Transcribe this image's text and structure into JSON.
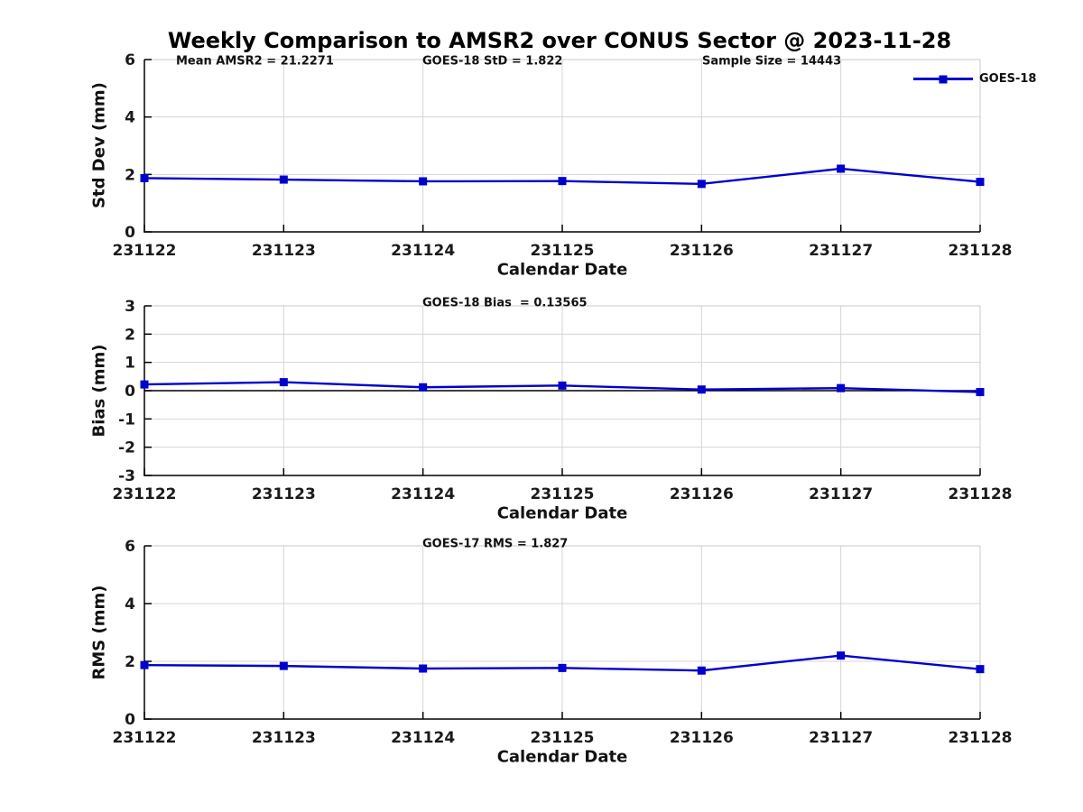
{
  "title": "Weekly Comparison to AMSR2 over CONUS Sector @ 2023-11-28",
  "legend": {
    "label": "GOES-18"
  },
  "colors": {
    "line": "#0000CD",
    "grid": "#d4d4d4",
    "border": "#c8c8c8",
    "axis": "#000000",
    "text": "#1a1a1a",
    "zero_line": "#000000"
  },
  "chart_data": [
    {
      "type": "line",
      "series_name": "GOES-18",
      "title": "",
      "xlabel": "Calendar Date",
      "ylabel": "Std Dev (mm)",
      "categories": [
        "231122",
        "231123",
        "231124",
        "231125",
        "231126",
        "231127",
        "231128"
      ],
      "values": [
        1.87,
        1.82,
        1.76,
        1.77,
        1.67,
        2.2,
        1.74
      ],
      "ylim": [
        0,
        6
      ],
      "yticks": [
        0,
        2,
        4,
        6
      ],
      "grid": true,
      "marker": "square",
      "zero_line": false,
      "legend_position": "top-right",
      "annotations": [
        "Mean AMSR2 = 21.2271",
        "GOES-18 StD = 1.822",
        "Sample Size = 14443"
      ]
    },
    {
      "type": "line",
      "series_name": "GOES-18",
      "title": "",
      "xlabel": "Calendar Date",
      "ylabel": "Bias (mm)",
      "categories": [
        "231122",
        "231123",
        "231124",
        "231125",
        "231126",
        "231127",
        "231128"
      ],
      "values": [
        0.22,
        0.3,
        0.12,
        0.18,
        0.04,
        0.09,
        -0.05
      ],
      "ylim": [
        -3,
        3
      ],
      "yticks": [
        -3,
        -2,
        -1,
        0,
        1,
        2,
        3
      ],
      "grid": true,
      "marker": "square",
      "zero_line": true,
      "annotations": [
        "GOES-18 Bias  = 0.13565"
      ]
    },
    {
      "type": "line",
      "series_name": "GOES-18",
      "title": "",
      "xlabel": "Calendar Date",
      "ylabel": "RMS (mm)",
      "categories": [
        "231122",
        "231123",
        "231124",
        "231125",
        "231126",
        "231127",
        "231128"
      ],
      "values": [
        1.87,
        1.84,
        1.75,
        1.77,
        1.68,
        2.2,
        1.73
      ],
      "ylim": [
        0,
        6
      ],
      "yticks": [
        0,
        2,
        4,
        6
      ],
      "grid": true,
      "marker": "square",
      "zero_line": false,
      "annotations": [
        "GOES-17 RMS = 1.827"
      ]
    }
  ]
}
